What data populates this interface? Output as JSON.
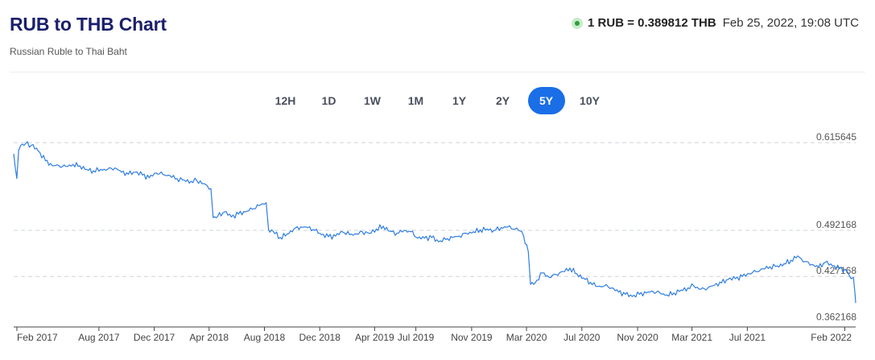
{
  "header": {
    "title": "RUB to THB Chart",
    "subtitle": "Russian Ruble to Thai Baht",
    "rate": "1 RUB = 0.389812 THB",
    "timestamp": "Feb 25, 2022, 19:08 UTC",
    "live_color": "#2e9e3c"
  },
  "periods": [
    "12H",
    "1D",
    "1W",
    "1M",
    "1Y",
    "2Y",
    "5Y",
    "10Y"
  ],
  "active_period": "5Y",
  "chart_data": {
    "type": "line",
    "title": "",
    "xlabel": "",
    "ylabel": "",
    "line_color": "#2f7de1",
    "y_ticks": [
      "0.615645",
      "0.492168",
      "0.427168",
      "0.362168"
    ],
    "y_tick_values": [
      0.615645,
      0.492168,
      0.427168,
      0.362168
    ],
    "x_tick_labels": [
      "Feb 2017",
      "Aug 2017",
      "Dec 2017",
      "Apr 2018",
      "Aug 2018",
      "Dec 2018",
      "Apr 2019",
      "Jul 2019",
      "Nov 2019",
      "Mar 2020",
      "Jul 2020",
      "Nov 2020",
      "Mar 2021",
      "Jul 2021",
      "Feb 2022"
    ],
    "x_tick_dates": [
      "2017-02-01",
      "2017-08-01",
      "2017-12-01",
      "2018-04-01",
      "2018-08-01",
      "2018-12-01",
      "2019-04-01",
      "2019-07-01",
      "2019-11-01",
      "2020-03-01",
      "2020-07-01",
      "2020-11-01",
      "2021-03-01",
      "2021-07-01",
      "2022-02-01"
    ],
    "x_range": [
      "2017-01-25",
      "2022-02-25"
    ],
    "y_range": [
      0.356,
      0.635
    ],
    "grid": "horizontal-dashed",
    "series": [
      {
        "x": [
          "2017-01-25",
          "2017-02-01",
          "2017-02-05",
          "2017-02-10",
          "2017-02-20",
          "2017-03-05",
          "2017-03-20",
          "2017-04-05",
          "2017-04-20",
          "2017-05-05",
          "2017-05-20",
          "2017-06-05",
          "2017-06-20",
          "2017-07-05",
          "2017-07-20",
          "2017-08-05",
          "2017-08-20",
          "2017-09-05",
          "2017-09-20",
          "2017-10-05",
          "2017-10-20",
          "2017-11-05",
          "2017-11-20",
          "2017-12-05",
          "2017-12-20",
          "2018-01-05",
          "2018-01-20",
          "2018-02-05",
          "2018-02-20",
          "2018-03-05",
          "2018-03-20",
          "2018-04-05",
          "2018-04-10",
          "2018-04-20",
          "2018-05-05",
          "2018-05-20",
          "2018-06-05",
          "2018-06-20",
          "2018-07-05",
          "2018-07-20",
          "2018-08-05",
          "2018-08-10",
          "2018-08-20",
          "2018-09-05",
          "2018-09-20",
          "2018-10-05",
          "2018-10-20",
          "2018-11-05",
          "2018-11-20",
          "2018-12-05",
          "2018-12-20",
          "2019-01-05",
          "2019-01-20",
          "2019-02-05",
          "2019-02-20",
          "2019-03-05",
          "2019-03-20",
          "2019-04-05",
          "2019-04-20",
          "2019-05-05",
          "2019-05-20",
          "2019-06-05",
          "2019-06-20",
          "2019-07-05",
          "2019-07-20",
          "2019-08-05",
          "2019-08-20",
          "2019-09-05",
          "2019-09-20",
          "2019-10-05",
          "2019-10-20",
          "2019-11-05",
          "2019-11-20",
          "2019-12-05",
          "2019-12-20",
          "2020-01-05",
          "2020-01-20",
          "2020-02-05",
          "2020-02-20",
          "2020-03-05",
          "2020-03-10",
          "2020-03-20",
          "2020-04-05",
          "2020-04-20",
          "2020-05-05",
          "2020-05-20",
          "2020-06-05",
          "2020-06-20",
          "2020-07-05",
          "2020-07-20",
          "2020-08-05",
          "2020-08-20",
          "2020-09-05",
          "2020-09-20",
          "2020-10-05",
          "2020-10-20",
          "2020-11-05",
          "2020-11-20",
          "2020-12-05",
          "2020-12-20",
          "2021-01-05",
          "2021-01-20",
          "2021-02-05",
          "2021-02-20",
          "2021-03-05",
          "2021-03-20",
          "2021-04-05",
          "2021-04-20",
          "2021-05-05",
          "2021-05-20",
          "2021-06-05",
          "2021-06-20",
          "2021-07-05",
          "2021-07-20",
          "2021-08-05",
          "2021-08-20",
          "2021-09-05",
          "2021-09-20",
          "2021-10-05",
          "2021-10-20",
          "2021-11-05",
          "2021-11-20",
          "2021-12-05",
          "2021-12-20",
          "2022-01-05",
          "2022-01-20",
          "2022-02-05",
          "2022-02-15",
          "2022-02-20",
          "2022-02-24",
          "2022-02-25"
        ],
        "y": [
          0.6,
          0.565,
          0.605,
          0.612,
          0.614,
          0.612,
          0.604,
          0.59,
          0.583,
          0.583,
          0.582,
          0.585,
          0.583,
          0.578,
          0.576,
          0.578,
          0.578,
          0.58,
          0.574,
          0.571,
          0.574,
          0.57,
          0.566,
          0.573,
          0.571,
          0.569,
          0.565,
          0.563,
          0.561,
          0.562,
          0.558,
          0.551,
          0.51,
          0.512,
          0.518,
          0.511,
          0.515,
          0.518,
          0.522,
          0.527,
          0.531,
          0.493,
          0.491,
          0.482,
          0.487,
          0.494,
          0.497,
          0.496,
          0.492,
          0.486,
          0.483,
          0.484,
          0.49,
          0.486,
          0.487,
          0.49,
          0.488,
          0.494,
          0.498,
          0.491,
          0.488,
          0.492,
          0.49,
          0.481,
          0.481,
          0.482,
          0.476,
          0.479,
          0.482,
          0.484,
          0.488,
          0.49,
          0.493,
          0.494,
          0.492,
          0.496,
          0.497,
          0.494,
          0.49,
          0.462,
          0.416,
          0.418,
          0.432,
          0.426,
          0.43,
          0.434,
          0.439,
          0.431,
          0.425,
          0.419,
          0.413,
          0.414,
          0.411,
          0.405,
          0.402,
          0.399,
          0.402,
          0.404,
          0.406,
          0.404,
          0.401,
          0.404,
          0.408,
          0.411,
          0.414,
          0.409,
          0.411,
          0.415,
          0.418,
          0.423,
          0.424,
          0.427,
          0.431,
          0.434,
          0.438,
          0.441,
          0.442,
          0.445,
          0.45,
          0.456,
          0.448,
          0.444,
          0.44,
          0.447,
          0.442,
          0.438,
          0.435,
          0.424,
          0.426,
          0.4,
          0.3898
        ]
      }
    ]
  }
}
